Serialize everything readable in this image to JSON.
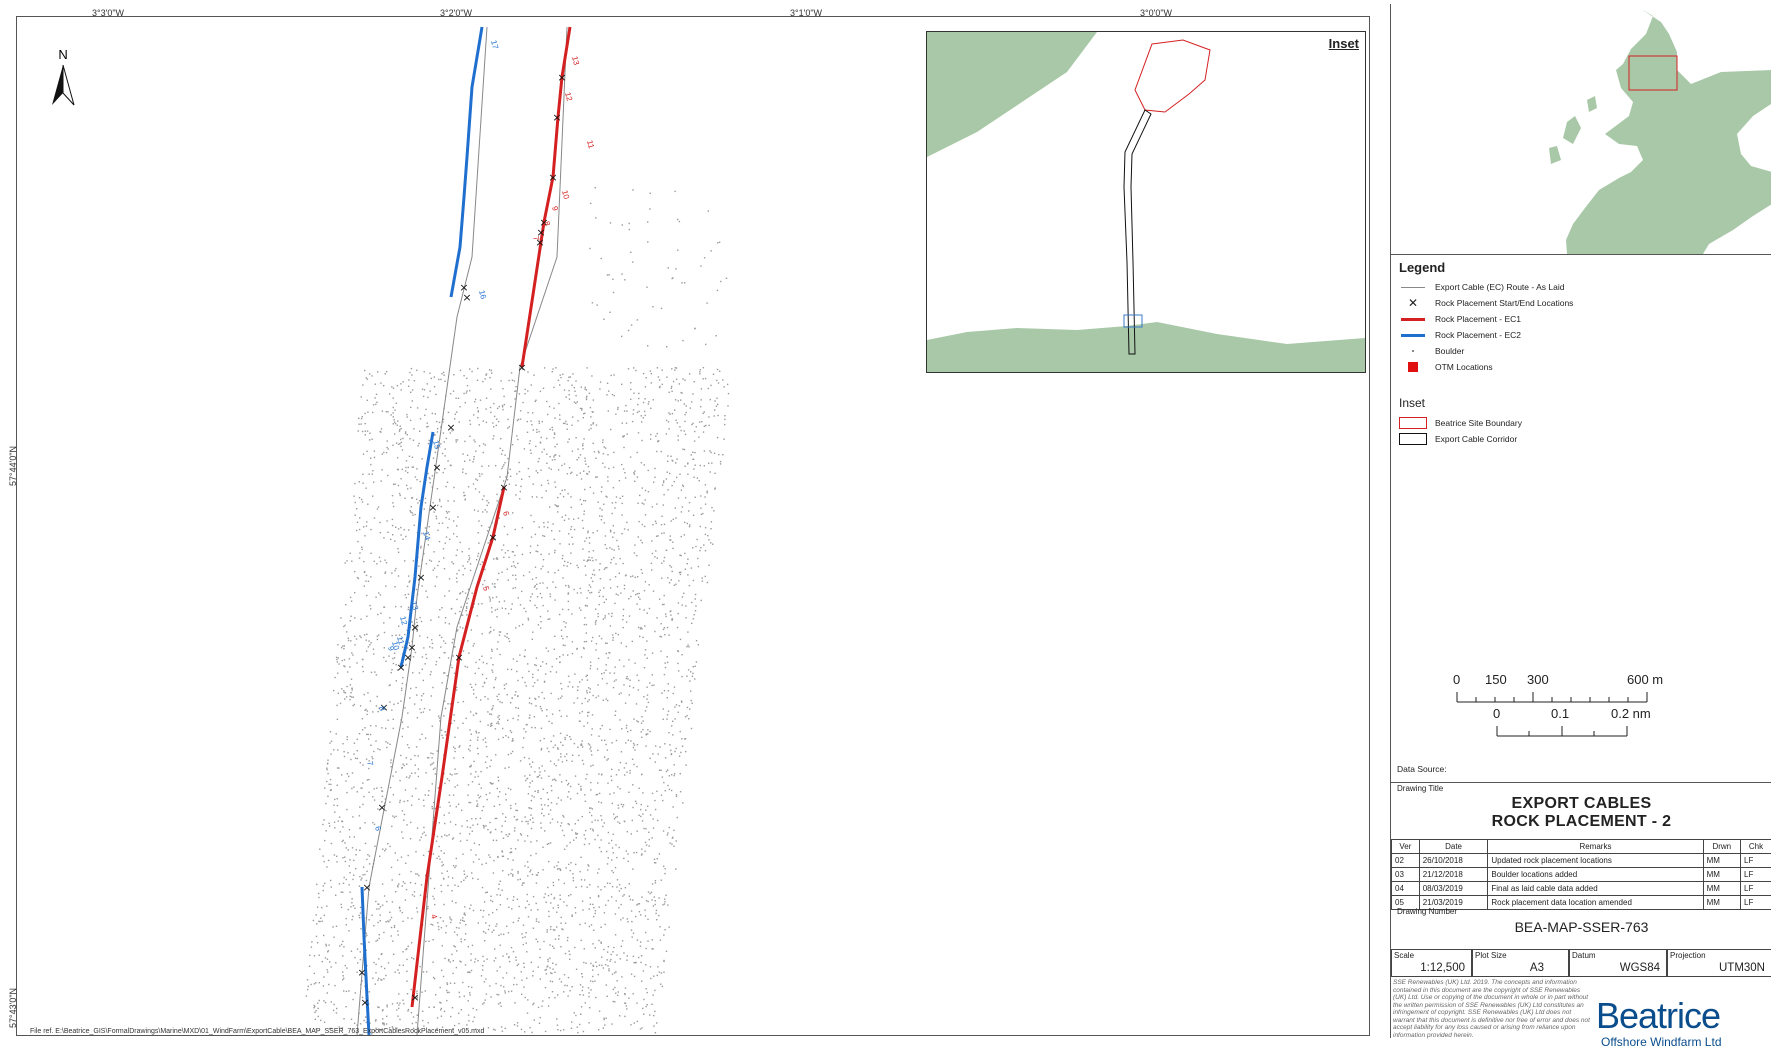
{
  "map": {
    "top_ticks": [
      "3°3'0\"W",
      "3°2'0\"W",
      "3°1'0\"W",
      "3°0'0\"W"
    ],
    "side_ticks": [
      "57°44'0\"N",
      "57°43'0\"N"
    ],
    "north_label": "N",
    "ec1_labels": [
      "13",
      "12",
      "11",
      "10",
      "9",
      "8",
      "7",
      "6",
      "5",
      "4"
    ],
    "ec2_labels": [
      "17",
      "16",
      "15",
      "14",
      "13",
      "12",
      "11",
      "10",
      "9",
      "8",
      "7",
      "6"
    ],
    "colors": {
      "ec1": "#d42020",
      "ec2": "#1f6fcf",
      "boulder": "#9a9a9a",
      "route": "#888888",
      "land": "#a8c8a8"
    },
    "file_ref": "File ref. E:\\Beatrice_GIS\\FormalDrawings\\Marine\\MXD\\01_WindFarm\\ExportCable\\BEA_MAP_SSER_763_ExportCablesRockPlacement_v05.mxd"
  },
  "inset": {
    "title": "Inset"
  },
  "legend": {
    "title": "Legend",
    "items": [
      {
        "label": "Export Cable (EC) Route - As Laid",
        "symbol": "route-line"
      },
      {
        "label": "Rock Placement Start/End Locations",
        "symbol": "cross"
      },
      {
        "label": "Rock Placement - EC1",
        "symbol": "red-line"
      },
      {
        "label": "Rock Placement - EC2",
        "symbol": "blue-line"
      },
      {
        "label": "Boulder",
        "symbol": "dot"
      },
      {
        "label": "OTM Locations",
        "symbol": "red-square"
      }
    ],
    "inset_heading": "Inset",
    "inset_items": [
      {
        "label": "Beatrice Site Boundary",
        "symbol": "red-box"
      },
      {
        "label": "Export Cable Corridor",
        "symbol": "black-box"
      }
    ]
  },
  "scale_bar": {
    "meters_ticks": [
      "0",
      "150",
      "300",
      "600 m"
    ],
    "nm_ticks": [
      "0",
      "0.1",
      "0.2 nm"
    ]
  },
  "title_block": {
    "data_source_label": "Data Source:",
    "drawing_title_label": "Drawing Title",
    "title_line1": "EXPORT CABLES",
    "title_line2": "ROCK PLACEMENT - 2",
    "rev_headers": [
      "Ver",
      "Date",
      "Remarks",
      "Drwn",
      "Chk"
    ],
    "revisions": [
      [
        "02",
        "26/10/2018",
        "Updated rock placement locations",
        "MM",
        "LF"
      ],
      [
        "03",
        "21/12/2018",
        "Boulder locations added",
        "MM",
        "LF"
      ],
      [
        "04",
        "08/03/2019",
        "Final as laid cable data added",
        "MM",
        "LF"
      ],
      [
        "05",
        "21/03/2019",
        "Rock placement data location amended",
        "MM",
        "LF"
      ]
    ],
    "drawing_number_label": "Drawing Number",
    "drawing_number": "BEA-MAP-SSER-763",
    "scale_label": "Scale",
    "scale_value": "1:12,500",
    "plot_size_label": "Plot Size",
    "plot_size_value": "A3",
    "datum_label": "Datum",
    "datum_value": "WGS84",
    "projection_label": "Projection",
    "projection_value": "UTM30N",
    "disclaimer": "SSE Renewables (UK) Ltd. 2019. The concepts and information contained in this document are the copyright of SSE Renewables (UK) Ltd. Use or copying of the document in whole or in part without the written permission of SSE Renewables (UK) Ltd constitutes an infringement of copyright. SSE Renewables (UK) Ltd does not warrant that this document is definitive nor free of error and does not accept liability for any loss caused or arising from reliance upon information provided herein.",
    "logo_text": "Beatrice",
    "logo_sub": "Offshore Windfarm Ltd"
  }
}
